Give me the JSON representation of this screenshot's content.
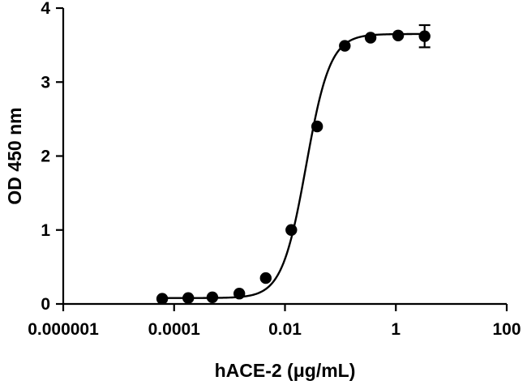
{
  "chart_data": {
    "type": "scatter",
    "title": "",
    "xlabel": "hACE-2 (μg/mL)",
    "ylabel": "OD 450 nm",
    "xscale": "log",
    "xlim": [
      1e-06,
      100
    ],
    "ylim": [
      0,
      4
    ],
    "x_ticks": [
      1e-06,
      0.0001,
      0.01,
      1,
      100
    ],
    "x_tick_labels": [
      "0.000001",
      "0.0001",
      "0.01",
      "1",
      "100"
    ],
    "y_ticks": [
      0,
      1,
      2,
      3,
      4
    ],
    "y_tick_labels": [
      "0",
      "1",
      "2",
      "3",
      "4"
    ],
    "grid": false,
    "series": [
      {
        "points": [
          {
            "x": 6.1e-05,
            "y": 0.07
          },
          {
            "x": 0.00018,
            "y": 0.08
          },
          {
            "x": 0.00049,
            "y": 0.09
          },
          {
            "x": 0.0015,
            "y": 0.14
          },
          {
            "x": 0.0045,
            "y": 0.35
          },
          {
            "x": 0.013,
            "y": 1.0
          },
          {
            "x": 0.038,
            "y": 2.4
          },
          {
            "x": 0.12,
            "y": 3.49
          },
          {
            "x": 0.35,
            "y": 3.6
          },
          {
            "x": 1.1,
            "y": 3.63
          },
          {
            "x": 3.3,
            "y": 3.62,
            "err": 0.15
          }
        ],
        "fit": {
          "model": "4PL",
          "bottom": 0.08,
          "top": 3.65,
          "ec50": 0.024,
          "hill": 2.0
        }
      }
    ]
  }
}
